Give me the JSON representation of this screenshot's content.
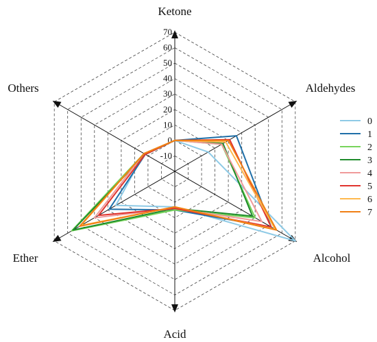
{
  "chart_data": {
    "type": "radar",
    "title": "",
    "axes": [
      "Ketone",
      "Aldehydes",
      "Alcohol",
      "Acid",
      "Ether",
      "Others"
    ],
    "radial_range": [
      -20,
      70
    ],
    "ticks": [
      -10,
      0,
      10,
      20,
      30,
      40,
      50,
      60,
      70
    ],
    "grid": true,
    "legend_position": "right",
    "series": [
      {
        "name": "0",
        "color": "#8ecae6",
        "values": [
          0,
          5,
          70,
          3,
          24,
          3
        ]
      },
      {
        "name": "1",
        "color": "#1f6fa8",
        "values": [
          0,
          26,
          52,
          5,
          29,
          2
        ]
      },
      {
        "name": "2",
        "color": "#77d45b",
        "values": [
          0,
          15,
          40,
          5,
          57,
          3
        ]
      },
      {
        "name": "3",
        "color": "#1e8b2b",
        "values": [
          0,
          16,
          38,
          4,
          56,
          2
        ]
      },
      {
        "name": "4",
        "color": "#f09a9a",
        "values": [
          0,
          15,
          45,
          4,
          40,
          3
        ]
      },
      {
        "name": "5",
        "color": "#e0332d",
        "values": [
          0,
          21,
          52,
          4,
          37,
          2
        ]
      },
      {
        "name": "6",
        "color": "#ffb84d",
        "values": [
          0,
          18,
          55,
          3,
          50,
          3
        ]
      },
      {
        "name": "7",
        "color": "#f07f13",
        "values": [
          0,
          20,
          56,
          3,
          51,
          3
        ]
      }
    ]
  }
}
